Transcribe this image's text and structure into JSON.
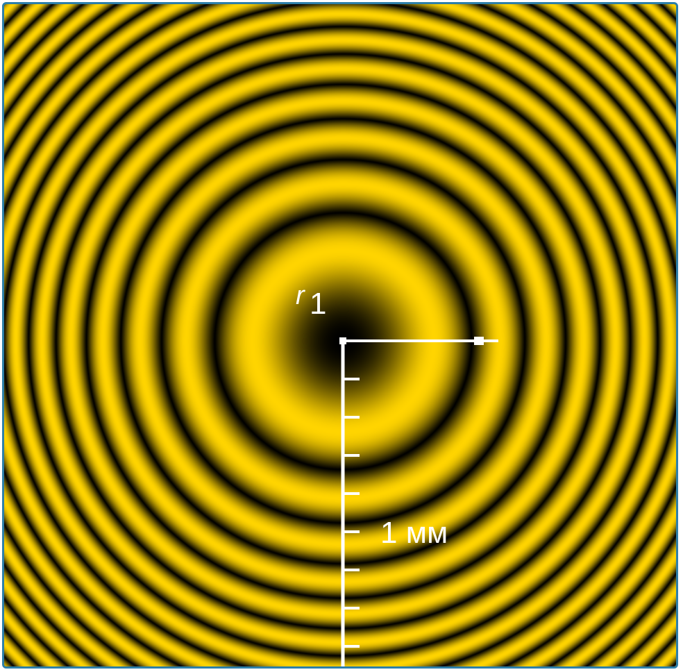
{
  "labels": {
    "radius_symbol": "r",
    "radius_subscript": "1",
    "scale_label": "1 мм"
  },
  "colors": {
    "bright": "#ffd400",
    "dark": "#000000",
    "frame_border": "#2e7fa8",
    "axis": "#ffffff"
  }
}
